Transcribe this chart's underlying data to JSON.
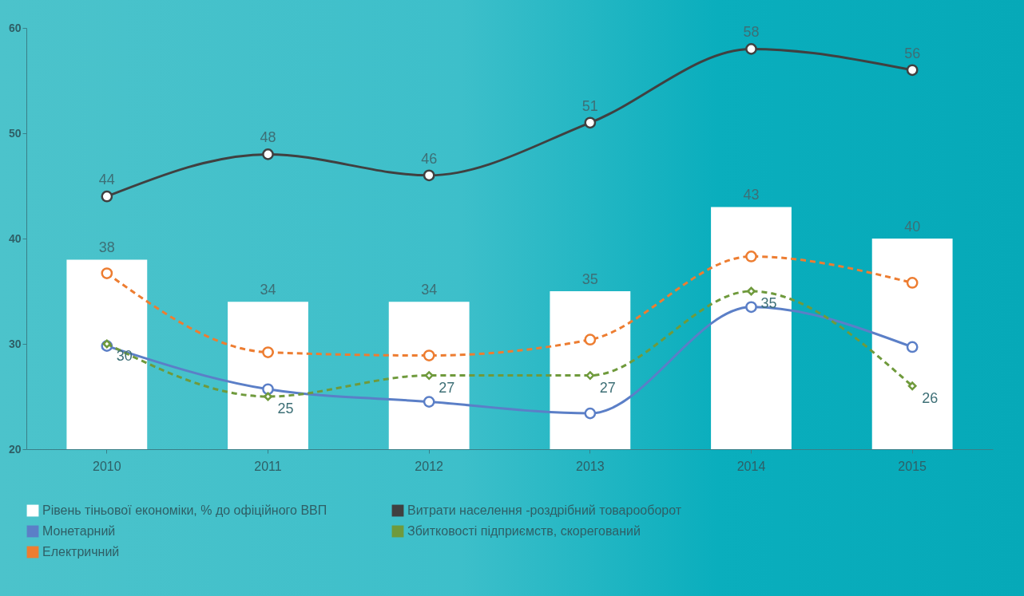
{
  "chart_data": {
    "type": "bar",
    "categories": [
      "2010",
      "2011",
      "2012",
      "2013",
      "2014",
      "2015"
    ],
    "series": [
      {
        "name": "Рівень тіньової економіки, % до офіційного ВВП",
        "color": "#ffffff",
        "values": [
          38,
          34,
          34,
          35,
          43,
          40
        ],
        "value_labels": [
          "38",
          "34",
          "34",
          "35",
          "43",
          "40"
        ]
      },
      {
        "name": "Витрати населення -роздрібний товарооборот",
        "type": "line",
        "color": "#404040",
        "marker": "circle",
        "line_style": "solid",
        "values": [
          44,
          48,
          46,
          51,
          58,
          56
        ],
        "value_labels": [
          "44",
          "48",
          "46",
          "51",
          "58",
          "56"
        ]
      },
      {
        "name": "Монетарний",
        "type": "line",
        "color": "#5b7fc7",
        "marker": "circle",
        "line_style": "solid",
        "values": [
          29.8,
          25.7,
          24.5,
          23.4,
          33.5,
          29.7
        ]
      },
      {
        "name": "Збитковості підприємств, скорегований",
        "type": "line",
        "color": "#6f9a3c",
        "marker": "diamond",
        "line_style": "dashed",
        "values": [
          30,
          25,
          27,
          27,
          35,
          26
        ],
        "value_labels": [
          "30",
          "25",
          "27",
          "27",
          "35",
          "26"
        ]
      },
      {
        "name": "Електричний",
        "type": "line",
        "color": "#ed7d31",
        "marker": "circle",
        "line_style": "dashed",
        "values": [
          36.7,
          29.2,
          28.9,
          30.4,
          38.3,
          35.8
        ]
      }
    ],
    "ylim": [
      20,
      60
    ],
    "yticks": [
      20,
      30,
      40,
      50,
      60
    ],
    "grid": false,
    "legend": "bottom"
  }
}
